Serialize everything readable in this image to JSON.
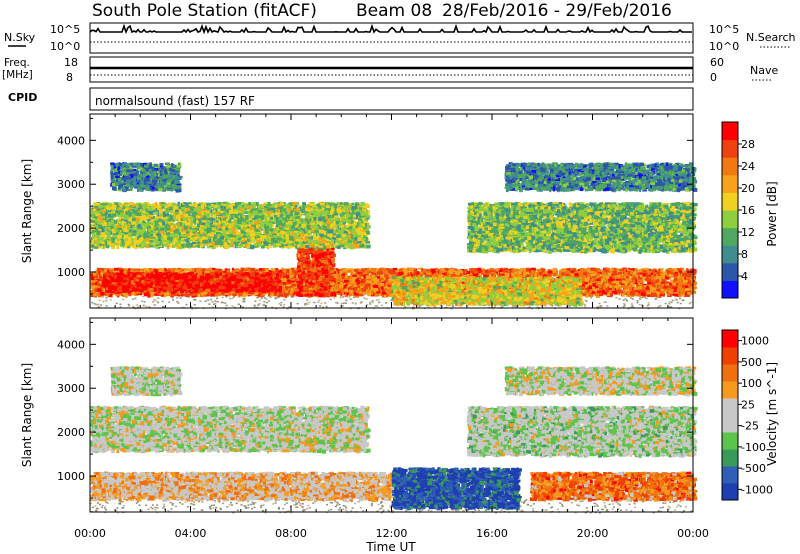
{
  "header": {
    "station": "South Pole Station (fitACF)",
    "beam": "Beam 08",
    "date_range": "28/Feb/2016 - 29/Feb/2016"
  },
  "nsky_panel": {
    "left_label": "N.Sky",
    "right_label": "N.Search",
    "left_ticks": [
      "10^5",
      "10^0"
    ],
    "right_ticks": [
      "10^5",
      "10^0"
    ]
  },
  "freq_panel": {
    "left_label_line1": "Freq.",
    "left_label_line2": "[MHz]",
    "right_label": "Nave",
    "left_ticks": [
      "18",
      "8"
    ],
    "right_ticks": [
      "60",
      "0"
    ]
  },
  "cpid_panel": {
    "label": "CPID",
    "text": "normalsound (fast) 157 RF"
  },
  "x_axis": {
    "label": "Time UT",
    "ticks": [
      "00:00",
      "04:00",
      "08:00",
      "12:00",
      "16:00",
      "20:00",
      "00:00"
    ]
  },
  "colors": {
    "power_scale": [
      "#1010ff",
      "#2e56a8",
      "#3f8d8e",
      "#50a860",
      "#8fcf3f",
      "#f0d020",
      "#f7a21c",
      "#f07a10",
      "#ef4010",
      "#ff0000"
    ],
    "velocity_scale": [
      "#1f3fb0",
      "#2f5fb6",
      "#3a9a5a",
      "#5cc44a",
      "#c8c8c8",
      "#c8c8c8",
      "#f59a1c",
      "#f07010",
      "#ef4000",
      "#ff0000"
    ]
  },
  "chart_data": [
    {
      "type": "heatmap",
      "name": "power-panel",
      "ylabel": "Slant Range [km]",
      "yticks": [
        1000,
        2000,
        3000,
        4000
      ],
      "ylim": [
        180,
        4600
      ],
      "xlim": [
        0,
        24
      ],
      "colorbar": {
        "label": "Power [dB]",
        "ticks": [
          "4",
          "8",
          "12",
          "16",
          "20",
          "24",
          "28"
        ],
        "range": [
          0,
          30
        ]
      },
      "bands": [
        {
          "x0": 0,
          "x1": 24,
          "y0": 500,
          "y1": 1100,
          "level": 0.78
        },
        {
          "x0": 0.5,
          "x1": 7.5,
          "y0": 600,
          "y1": 1000,
          "level": 0.95
        },
        {
          "x0": 8.2,
          "x1": 9.6,
          "y0": 500,
          "y1": 1700,
          "level": 0.85
        },
        {
          "x0": 12,
          "x1": 19.5,
          "y0": 300,
          "y1": 900,
          "level": 0.55
        },
        {
          "x0": 0,
          "x1": 11,
          "y0": 1600,
          "y1": 2600,
          "level": 0.45
        },
        {
          "x0": 15,
          "x1": 24,
          "y0": 1500,
          "y1": 2600,
          "level": 0.4
        },
        {
          "x0": 0.8,
          "x1": 3.5,
          "y0": 2900,
          "y1": 3500,
          "level": 0.25
        },
        {
          "x0": 16.5,
          "x1": 24,
          "y0": 2900,
          "y1": 3500,
          "level": 0.25
        }
      ]
    },
    {
      "type": "heatmap",
      "name": "velocity-panel",
      "ylabel": "Slant Range [km]",
      "yticks": [
        1000,
        2000,
        3000,
        4000
      ],
      "ylim": [
        180,
        4600
      ],
      "xlim": [
        0,
        24
      ],
      "colorbar": {
        "label": "Velocity [m s^-1]",
        "ticks": [
          "1000",
          "500",
          "100",
          "25",
          "-25",
          "-100",
          "-500",
          "-1000"
        ],
        "range": [
          -1000,
          1000
        ]
      },
      "bands": [
        {
          "x0": 0,
          "x1": 12,
          "y0": 500,
          "y1": 1100,
          "level": 0.6
        },
        {
          "x0": 12,
          "x1": 17,
          "y0": 300,
          "y1": 1200,
          "level": 0.1
        },
        {
          "x0": 17.5,
          "x1": 24,
          "y0": 500,
          "y1": 1100,
          "level": 0.75
        },
        {
          "x0": 0,
          "x1": 11,
          "y0": 1600,
          "y1": 2600,
          "level": 0.48
        },
        {
          "x0": 15,
          "x1": 24,
          "y0": 1500,
          "y1": 2600,
          "level": 0.45
        },
        {
          "x0": 0.8,
          "x1": 3.5,
          "y0": 2900,
          "y1": 3500,
          "level": 0.48
        },
        {
          "x0": 16.5,
          "x1": 24,
          "y0": 2900,
          "y1": 3500,
          "level": 0.5
        }
      ]
    }
  ]
}
